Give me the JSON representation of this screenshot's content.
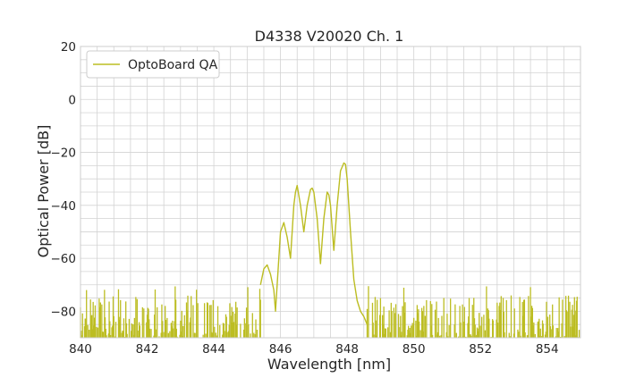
{
  "chart_data": {
    "type": "line",
    "title": "D4338 V20020 Ch. 1",
    "xlabel": "Wavelength [nm]",
    "ylabel": "Optical Power [dB]",
    "xlim": [
      840,
      855
    ],
    "ylim": [
      -90,
      20
    ],
    "xticks": [
      840,
      842,
      844,
      846,
      848,
      850,
      852,
      854
    ],
    "yticks": [
      20,
      0,
      -20,
      -40,
      -60,
      -80
    ],
    "ytick_labels": [
      "20",
      "0",
      "−20",
      "−40",
      "−60",
      "−80"
    ],
    "grid": true,
    "legend": {
      "position": "top-left",
      "entries": [
        "OptoBoard QA"
      ]
    },
    "colors": {
      "series": "#bcbd22",
      "grid": "#d3d3d3",
      "spine": "#cccccc",
      "text": "#262626"
    },
    "noise_floor": {
      "x_ranges": [
        [
          840,
          845.4
        ],
        [
          848.6,
          855
        ]
      ],
      "level_range": [
        -90,
        -72
      ]
    },
    "series": [
      {
        "name": "OptoBoard QA",
        "x": [
          845.4,
          845.5,
          845.6,
          845.7,
          845.8,
          845.85,
          845.9,
          846.0,
          846.1,
          846.2,
          846.3,
          846.4,
          846.45,
          846.5,
          846.6,
          846.7,
          846.8,
          846.9,
          846.95,
          847.0,
          847.1,
          847.2,
          847.3,
          847.4,
          847.45,
          847.5,
          847.6,
          847.7,
          847.8,
          847.9,
          847.95,
          848.0,
          848.1,
          848.2,
          848.3,
          848.4,
          848.5,
          848.6
        ],
        "y": [
          -70,
          -64,
          -62.5,
          -66,
          -72,
          -80,
          -70,
          -50,
          -46.5,
          -52,
          -60,
          -40,
          -35,
          -32.5,
          -40,
          -50,
          -40,
          -34,
          -33.5,
          -35,
          -45,
          -62,
          -45,
          -35,
          -36,
          -40,
          -57,
          -40,
          -27,
          -24,
          -24.5,
          -30,
          -50,
          -68,
          -76,
          -80,
          -82,
          -85
        ]
      }
    ]
  }
}
